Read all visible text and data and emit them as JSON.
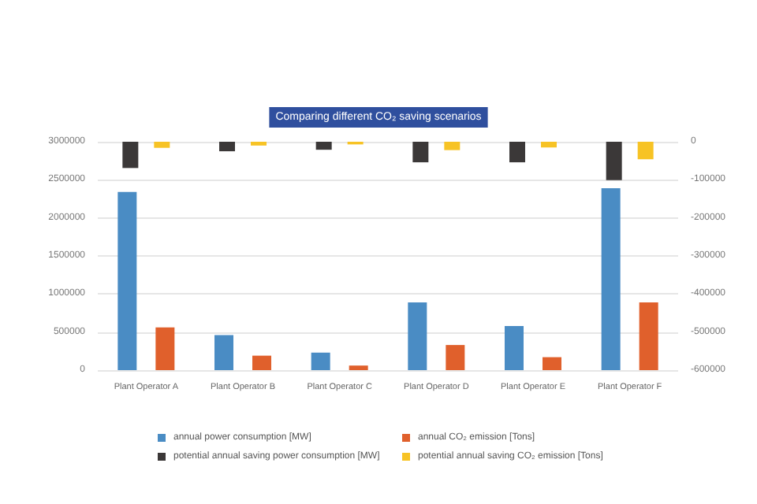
{
  "chart_data": {
    "type": "bar",
    "title": "Comparing different CO₂ saving scenarios",
    "categories": [
      "Plant Operator A",
      "Plant Operator B",
      "Plant Operator C",
      "Plant Operator D",
      "Plant Operator E",
      "Plant Operator F"
    ],
    "series": [
      {
        "name": "annual power consumption [MW]",
        "color": "#4a8cc4",
        "values": [
          2340000,
          460000,
          230000,
          890000,
          580000,
          2390000
        ]
      },
      {
        "name": "annual CO₂ emission [Tons]",
        "color": "#e0602c",
        "values": [
          560000,
          190000,
          60000,
          330000,
          170000,
          890000
        ]
      },
      {
        "name": "potential annual saving power consumption [MW]",
        "color": "#3b3838",
        "axis": "y2",
        "values": [
          -69000,
          -25000,
          -21000,
          -54000,
          -54000,
          -101000
        ]
      },
      {
        "name": "potential annual saving CO₂ emission [Tons]",
        "color": "#f7c325",
        "axis": "y2",
        "values": [
          -16000,
          -10000,
          -7000,
          -22000,
          -15000,
          -46000
        ]
      }
    ],
    "ylim": [
      0,
      3000000
    ],
    "yticks": [
      0,
      500000,
      1000000,
      1500000,
      2000000,
      2500000,
      3000000
    ],
    "y2lim": [
      -600000,
      0
    ],
    "y2ticks": [
      -600000,
      -500000,
      -400000,
      -300000,
      -200000,
      -100000,
      0
    ],
    "grid": "y",
    "legend": "bottom"
  }
}
